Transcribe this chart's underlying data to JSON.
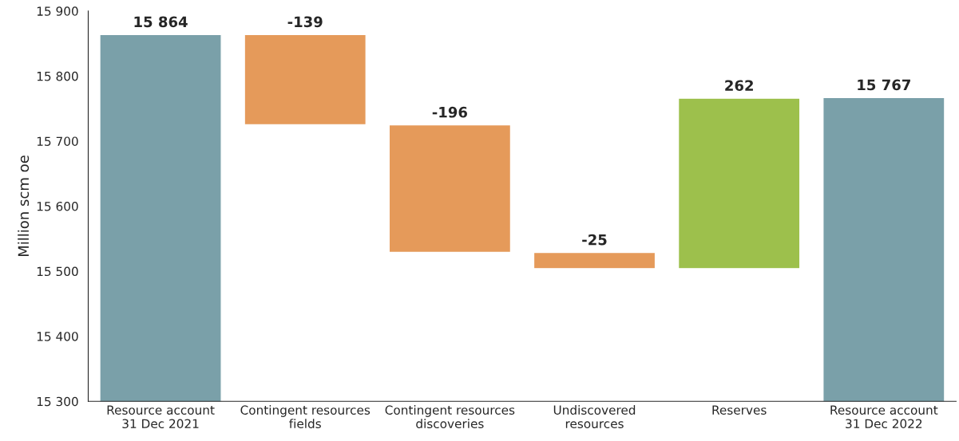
{
  "chart_data": {
    "type": "bar",
    "ylabel": "Million scm oe",
    "categories": [
      "Resource account\n31 Dec 2021",
      "Contingent resources\nfields",
      "Contingent resources\ndiscoveries",
      "Undiscovered\nresources",
      "Reserves",
      "Resource account\n31 Dec 2022"
    ],
    "values": [
      15864,
      -139,
      -196,
      -25,
      262,
      15767
    ],
    "base": [
      0,
      15864,
      15725,
      15529,
      15504,
      0
    ],
    "colors": [
      "#7aa0a9",
      "#e59a5a",
      "#e59a5a",
      "#e59a5a",
      "#9dc04c",
      "#7aa0a9"
    ],
    "value_labels": [
      "15 864",
      "-139",
      "-196",
      "-25",
      "262",
      "15 767"
    ],
    "ylim": [
      15300,
      15900
    ],
    "yticks": [
      {
        "value": 15300,
        "label": "15 300"
      },
      {
        "value": 15400,
        "label": "15 400"
      },
      {
        "value": 15500,
        "label": "15 500"
      },
      {
        "value": 15600,
        "label": "15 600"
      },
      {
        "value": 15700,
        "label": "15 700"
      },
      {
        "value": 15800,
        "label": "15 800"
      },
      {
        "value": 15900,
        "label": "15 900"
      }
    ],
    "grid": false
  }
}
